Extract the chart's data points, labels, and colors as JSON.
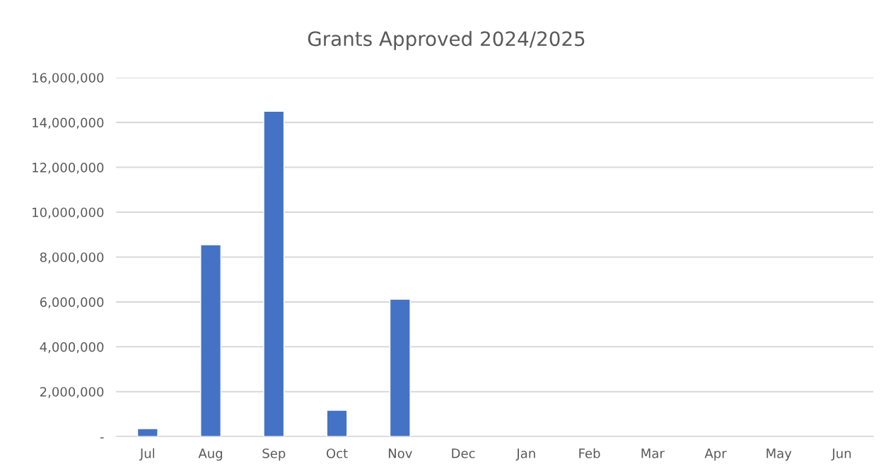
{
  "chart_data": {
    "type": "bar",
    "title": "Grants Approved 2024/2025",
    "categories": [
      "Jul",
      "Aug",
      "Sep",
      "Oct",
      "Nov",
      "Dec",
      "Jan",
      "Feb",
      "Mar",
      "Apr",
      "May",
      "Jun"
    ],
    "values": [
      350000,
      8550000,
      14500000,
      1170000,
      6120000,
      null,
      null,
      null,
      null,
      null,
      null,
      null
    ],
    "color": "#4472c4",
    "ylim": [
      0,
      16000000
    ],
    "yticks": [
      {
        "value": 0,
        "label": "-"
      },
      {
        "value": 2000000,
        "label": "2,000,000"
      },
      {
        "value": 4000000,
        "label": "4,000,000"
      },
      {
        "value": 6000000,
        "label": "6,000,000"
      },
      {
        "value": 8000000,
        "label": "8,000,000"
      },
      {
        "value": 10000000,
        "label": "10,000,000"
      },
      {
        "value": 12000000,
        "label": "12,000,000"
      },
      {
        "value": 14000000,
        "label": "14,000,000"
      },
      {
        "value": 16000000,
        "label": "16,000,000"
      }
    ],
    "grid": "y"
  }
}
